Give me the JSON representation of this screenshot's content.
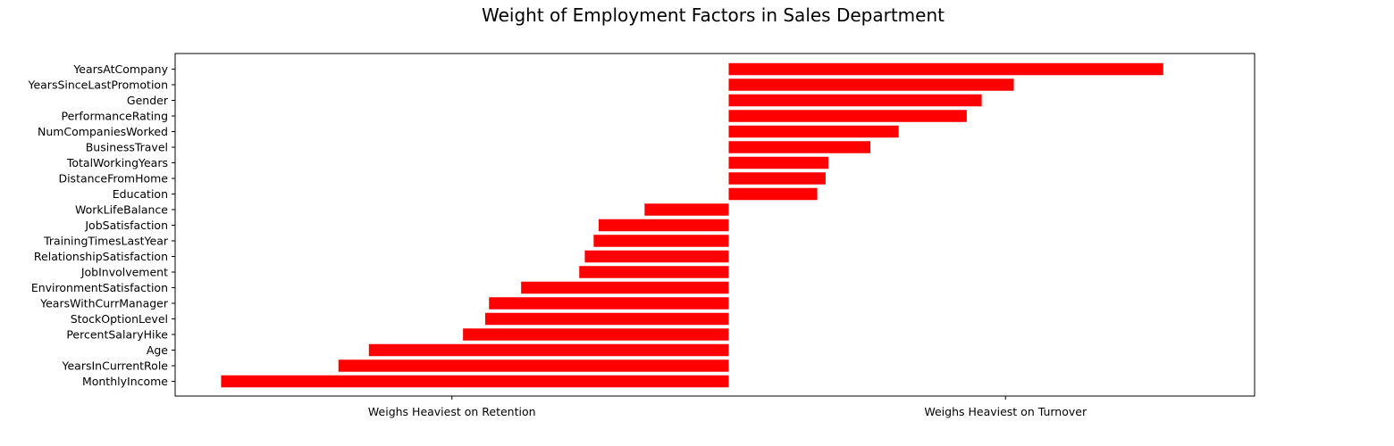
{
  "chart_data": {
    "type": "bar",
    "orientation": "horizontal",
    "title": "Weight of Employment Factors in Sales Department",
    "xlabel": "",
    "ylabel": "",
    "xlim": [
      -1.0,
      0.95
    ],
    "xticks": [
      {
        "value": -0.5,
        "label": "Weighs Heaviest on Retention"
      },
      {
        "value": 0.5,
        "label": "Weighs Heaviest on Turnover"
      }
    ],
    "grid": false,
    "legend": "none",
    "bar_color": "#ff0000",
    "categories": [
      "YearsAtCompany",
      "YearsSinceLastPromotion",
      "Gender",
      "PerformanceRating",
      "NumCompaniesWorked",
      "BusinessTravel",
      "TotalWorkingYears",
      "DistanceFromHome",
      "Education",
      "WorkLifeBalance",
      "JobSatisfaction",
      "TrainingTimesLastYear",
      "RelationshipSatisfaction",
      "JobInvolvement",
      "EnvironmentSatisfaction",
      "YearsWithCurrManager",
      "StockOptionLevel",
      "PercentSalaryHike",
      "Age",
      "YearsInCurrentRole",
      "MonthlyIncome"
    ],
    "values": [
      0.785,
      0.515,
      0.457,
      0.43,
      0.307,
      0.256,
      0.18,
      0.175,
      0.16,
      -0.152,
      -0.235,
      -0.244,
      -0.26,
      -0.27,
      -0.375,
      -0.433,
      -0.44,
      -0.48,
      -0.65,
      -0.705,
      -0.917
    ]
  }
}
